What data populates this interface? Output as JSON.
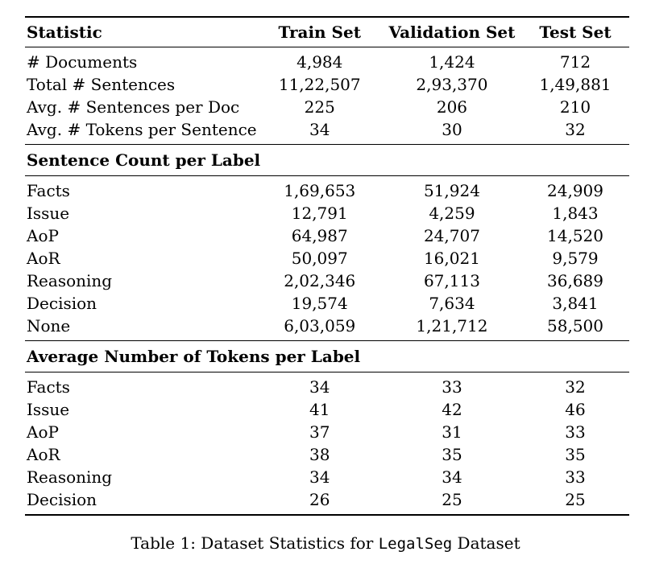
{
  "table": {
    "columns": [
      "Statistic",
      "Train Set",
      "Validation Set",
      "Test Set"
    ],
    "stats_rows": [
      {
        "label": "# Documents",
        "train": "4,984",
        "validation": "1,424",
        "test": "712"
      },
      {
        "label": "Total # Sentences",
        "train": "11,22,507",
        "validation": "2,93,370",
        "test": "1,49,881"
      },
      {
        "label": "Avg. # Sentences per Doc",
        "train": "225",
        "validation": "206",
        "test": "210"
      },
      {
        "label": "Avg. # Tokens per Sentence",
        "train": "34",
        "validation": "30",
        "test": "32"
      }
    ],
    "sentence_count_section": {
      "title": "Sentence Count per Label",
      "rows": [
        {
          "label": "Facts",
          "train": "1,69,653",
          "validation": "51,924",
          "test": "24,909"
        },
        {
          "label": "Issue",
          "train": "12,791",
          "validation": "4,259",
          "test": "1,843"
        },
        {
          "label": "AoP",
          "train": "64,987",
          "validation": "24,707",
          "test": "14,520"
        },
        {
          "label": "AoR",
          "train": "50,097",
          "validation": "16,021",
          "test": "9,579"
        },
        {
          "label": "Reasoning",
          "train": "2,02,346",
          "validation": "67,113",
          "test": "36,689"
        },
        {
          "label": "Decision",
          "train": "19,574",
          "validation": "7,634",
          "test": "3,841"
        },
        {
          "label": "None",
          "train": "6,03,059",
          "validation": "1,21,712",
          "test": "58,500"
        }
      ]
    },
    "avg_tokens_section": {
      "title": "Average Number of Tokens per Label",
      "rows": [
        {
          "label": "Facts",
          "train": "34",
          "validation": "33",
          "test": "32"
        },
        {
          "label": "Issue",
          "train": "41",
          "validation": "42",
          "test": "46"
        },
        {
          "label": "AoP",
          "train": "37",
          "validation": "31",
          "test": "33"
        },
        {
          "label": "AoR",
          "train": "38",
          "validation": "35",
          "test": "35"
        },
        {
          "label": "Reasoning",
          "train": "34",
          "validation": "34",
          "test": "33"
        },
        {
          "label": "Decision",
          "train": "26",
          "validation": "25",
          "test": "25"
        }
      ]
    }
  },
  "caption": {
    "prefix": "Table 1: Dataset Statistics for ",
    "code": "LegalSeg",
    "suffix": " Dataset"
  },
  "colors": {
    "text": "#000000",
    "background": "#ffffff",
    "rule": "#000000"
  },
  "chart_data": {
    "type": "table",
    "title": "Dataset Statistics for LegalSeg Dataset",
    "columns": [
      "Statistic",
      "Train Set",
      "Validation Set",
      "Test Set"
    ],
    "sections": [
      {
        "name": "",
        "rows": [
          [
            "# Documents",
            "4,984",
            "1,424",
            "712"
          ],
          [
            "Total # Sentences",
            "11,22,507",
            "2,93,370",
            "1,49,881"
          ],
          [
            "Avg. # Sentences per Doc",
            "225",
            "206",
            "210"
          ],
          [
            "Avg. # Tokens per Sentence",
            "34",
            "30",
            "32"
          ]
        ]
      },
      {
        "name": "Sentence Count per Label",
        "rows": [
          [
            "Facts",
            "1,69,653",
            "51,924",
            "24,909"
          ],
          [
            "Issue",
            "12,791",
            "4,259",
            "1,843"
          ],
          [
            "AoP",
            "64,987",
            "24,707",
            "14,520"
          ],
          [
            "AoR",
            "50,097",
            "16,021",
            "9,579"
          ],
          [
            "Reasoning",
            "2,02,346",
            "67,113",
            "36,689"
          ],
          [
            "Decision",
            "19,574",
            "7,634",
            "3,841"
          ],
          [
            "None",
            "6,03,059",
            "1,21,712",
            "58,500"
          ]
        ]
      },
      {
        "name": "Average Number of Tokens per Label",
        "rows": [
          [
            "Facts",
            "34",
            "33",
            "32"
          ],
          [
            "Issue",
            "41",
            "42",
            "46"
          ],
          [
            "AoP",
            "37",
            "31",
            "33"
          ],
          [
            "AoR",
            "38",
            "35",
            "35"
          ],
          [
            "Reasoning",
            "34",
            "34",
            "33"
          ],
          [
            "Decision",
            "26",
            "25",
            "25"
          ]
        ]
      }
    ]
  }
}
